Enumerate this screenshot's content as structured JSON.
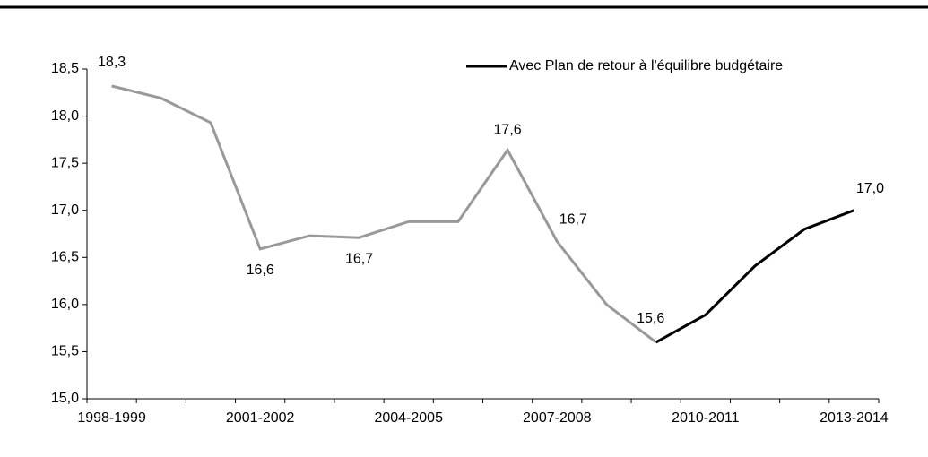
{
  "chart_data": {
    "type": "line",
    "categories": [
      "1998-1999",
      null,
      null,
      "2001-2002",
      null,
      null,
      "2004-2005",
      null,
      null,
      "2007-2008",
      null,
      null,
      "2010-2011",
      null,
      null,
      "2013-2014"
    ],
    "series": [
      {
        "color": "#999999",
        "values": [
          18.32,
          18.19,
          17.93,
          16.59,
          16.73,
          16.71,
          16.88,
          16.88,
          17.64,
          16.67,
          16.0,
          15.6,
          null,
          null,
          null,
          null
        ],
        "value_labels": [
          "18,3",
          null,
          null,
          "16,6",
          null,
          "16,7",
          null,
          null,
          "17,6",
          "16,7",
          null,
          "15,6",
          null,
          null,
          null,
          null
        ]
      },
      {
        "name": "Avec Plan de retour à l'équilibre budgétaire",
        "color": "#000000",
        "values": [
          null,
          null,
          null,
          null,
          null,
          null,
          null,
          null,
          null,
          null,
          null,
          15.6,
          15.89,
          16.41,
          16.8,
          17.0
        ],
        "value_labels": [
          null,
          null,
          null,
          null,
          null,
          null,
          null,
          null,
          null,
          null,
          null,
          null,
          null,
          null,
          null,
          "17,0"
        ]
      }
    ],
    "ylim": [
      15,
      18.5
    ],
    "yticks": [
      {
        "value": 15,
        "label": "15,0"
      },
      {
        "value": 15.5,
        "label": "15,5"
      },
      {
        "value": 16,
        "label": "16,0"
      },
      {
        "value": 16.5,
        "label": "16,5"
      },
      {
        "value": 17,
        "label": "17,0"
      },
      {
        "value": 17.5,
        "label": "17,5"
      },
      {
        "value": 18,
        "label": "18,0"
      },
      {
        "value": 18.5,
        "label": "18,5"
      }
    ],
    "legend": "top right"
  }
}
